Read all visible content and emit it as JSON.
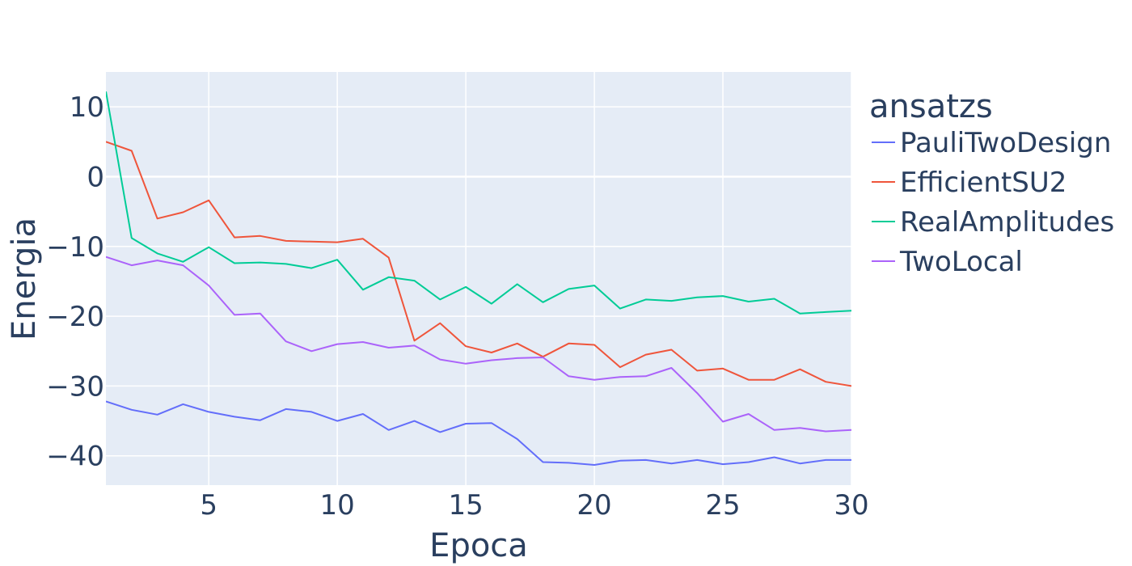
{
  "chart_data": {
    "type": "line",
    "title": "",
    "xlabel": "Epoca",
    "ylabel": "Energia",
    "xlim": [
      1,
      30
    ],
    "ylim": [
      -44.2,
      15
    ],
    "x_ticks": [
      5,
      10,
      15,
      20,
      25,
      30
    ],
    "y_ticks": [
      10,
      0,
      -10,
      -20,
      -30,
      -40
    ],
    "grid": true,
    "legend": {
      "title": "ansatzs",
      "placement": "right"
    },
    "x": [
      1,
      2,
      3,
      4,
      5,
      6,
      7,
      8,
      9,
      10,
      11,
      12,
      13,
      14,
      15,
      16,
      17,
      18,
      19,
      20,
      21,
      22,
      23,
      24,
      25,
      26,
      27,
      28,
      29,
      30
    ],
    "series": [
      {
        "name": "PauliTwoDesign",
        "color": "#636efa",
        "values": [
          -32.2,
          -33.4,
          -34.1,
          -32.6,
          -33.7,
          -34.4,
          -34.9,
          -33.3,
          -33.7,
          -35.0,
          -34.0,
          -36.3,
          -35.0,
          -36.6,
          -35.4,
          -35.3,
          -37.6,
          -40.9,
          -41.0,
          -41.3,
          -40.7,
          -40.6,
          -41.1,
          -40.6,
          -41.2,
          -40.9,
          -40.2,
          -41.1,
          -40.6,
          -40.6
        ]
      },
      {
        "name": "EfficientSU2",
        "color": "#ef553b",
        "values": [
          5.0,
          3.7,
          -6.0,
          -5.1,
          -3.4,
          -8.7,
          -8.5,
          -9.2,
          -9.3,
          -9.4,
          -8.9,
          -11.6,
          -23.5,
          -21.0,
          -24.3,
          -25.2,
          -23.9,
          -25.8,
          -23.9,
          -24.1,
          -27.3,
          -25.5,
          -24.8,
          -27.8,
          -27.5,
          -29.1,
          -29.1,
          -27.6,
          -29.4,
          -30.0
        ]
      },
      {
        "name": "RealAmplitudes",
        "color": "#00cc96",
        "values": [
          12.2,
          -8.8,
          -11.0,
          -12.2,
          -10.1,
          -12.4,
          -12.3,
          -12.5,
          -13.1,
          -11.9,
          -16.2,
          -14.4,
          -14.9,
          -17.6,
          -15.8,
          -18.2,
          -15.4,
          -18.0,
          -16.1,
          -15.6,
          -18.9,
          -17.6,
          -17.8,
          -17.3,
          -17.1,
          -17.9,
          -17.5,
          -19.6,
          -19.4,
          -19.2
        ]
      },
      {
        "name": "TwoLocal",
        "color": "#ab63fa",
        "values": [
          -11.5,
          -12.7,
          -12.0,
          -12.7,
          -15.6,
          -19.8,
          -19.6,
          -23.6,
          -25.0,
          -24.0,
          -23.7,
          -24.5,
          -24.2,
          -26.2,
          -26.8,
          -26.3,
          -26.0,
          -25.9,
          -28.6,
          -29.1,
          -28.7,
          -28.6,
          -27.4,
          -31.0,
          -35.1,
          -34.0,
          -36.3,
          -36.0,
          -36.5,
          -36.3
        ]
      }
    ]
  }
}
